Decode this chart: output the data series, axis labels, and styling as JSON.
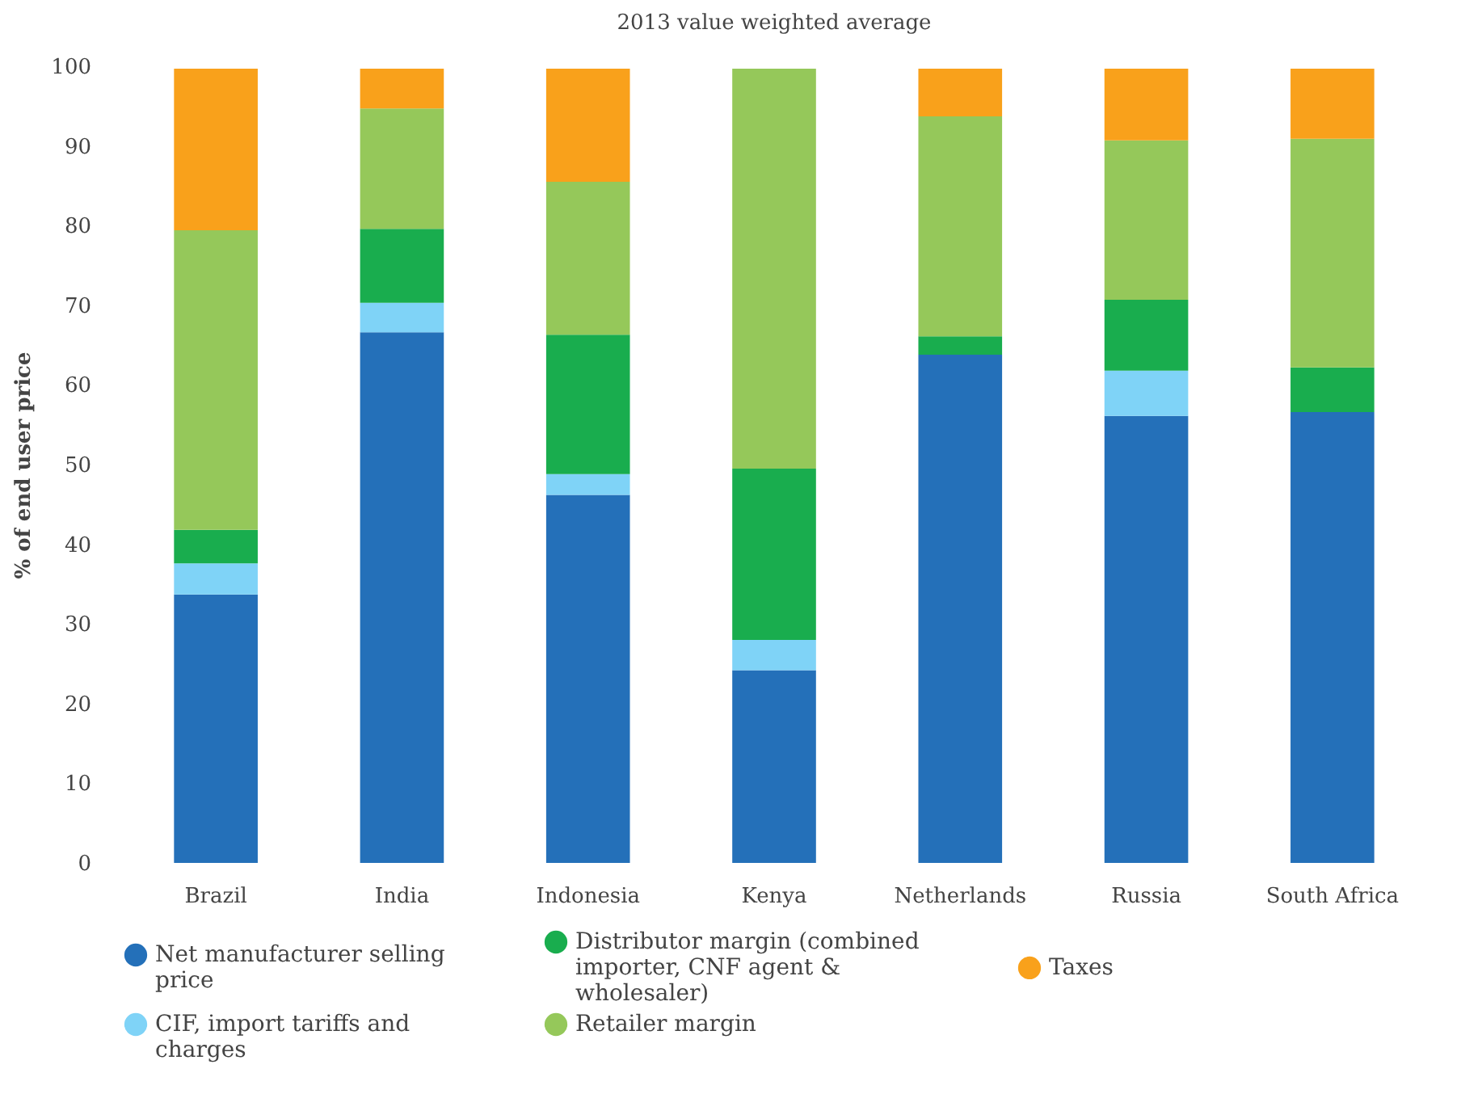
{
  "chart_data": {
    "type": "bar",
    "title": "2013 value weighted average",
    "ylabel": "% of end user price",
    "stacked": true,
    "legend": "bottom",
    "grid": false,
    "categories": [
      "Brazil",
      "India",
      "Indonesia",
      "Kenya",
      "Netherlands",
      "Russia",
      "South Africa"
    ],
    "ylim": [
      0,
      100
    ],
    "yticks": [
      0,
      10,
      20,
      30,
      40,
      50,
      60,
      70,
      80,
      90,
      100
    ],
    "series": [
      {
        "name": "Net manufacturer selling price",
        "color": "#2470b9",
        "values": [
          33.7,
          66.6,
          46.2,
          24.2,
          63.8,
          56.1,
          56.6
        ]
      },
      {
        "name": "CIF, import tariffs and charges",
        "color": "#7fd3f7",
        "values": [
          3.9,
          3.7,
          2.6,
          3.8,
          0,
          5.7,
          0
        ]
      },
      {
        "name": "Distributor margin (combined importer, CNF agent & wholesaler)",
        "color": "#19ad4e",
        "values": [
          4.2,
          9.3,
          17.5,
          21.5,
          2.3,
          8.9,
          5.6
        ]
      },
      {
        "name": "Retailer margin",
        "color": "#95c85a",
        "values": [
          37.6,
          15.1,
          19.2,
          50.2,
          27.6,
          20.0,
          28.7
        ]
      },
      {
        "name": "Taxes",
        "color": "#f9a11b",
        "values": [
          20.3,
          5.0,
          14.2,
          0,
          6.0,
          9.0,
          8.8
        ]
      }
    ]
  }
}
